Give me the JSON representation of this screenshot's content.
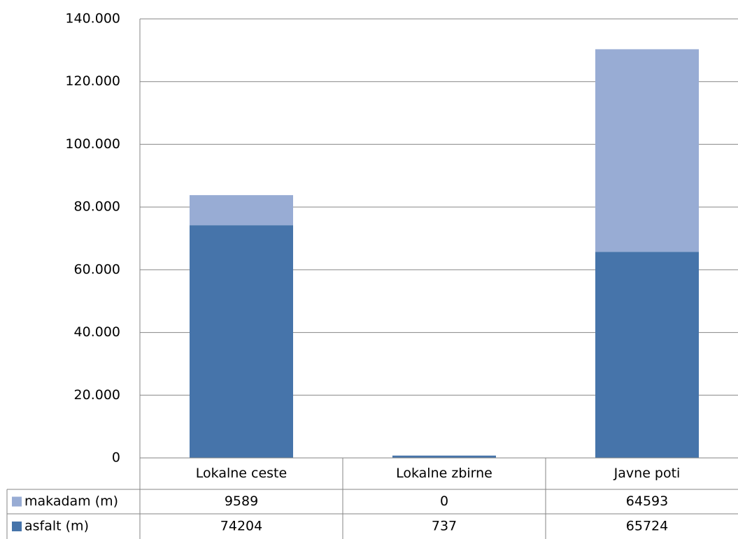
{
  "chart_data": {
    "type": "stacked-bar",
    "categories": [
      "Lokalne ceste",
      "Lokalne zbirne",
      "Javne poti"
    ],
    "series": [
      {
        "name": "makadam (m)",
        "color": "#98acd4",
        "values": [
          9589,
          0,
          64593
        ]
      },
      {
        "name": "asfalt (m)",
        "color": "#4674aa",
        "values": [
          74204,
          737,
          65724
        ]
      }
    ],
    "ylim": [
      0,
      140000
    ],
    "yticks": [
      0,
      {
        "value": 20000,
        "label": "20.000"
      },
      {
        "value": 40000,
        "label": "40.000"
      },
      {
        "value": 60000,
        "label": "60.000"
      },
      {
        "value": 80000,
        "label": "80.000"
      },
      {
        "value": 100000,
        "label": "100.000"
      },
      {
        "value": 120000,
        "label": "120.000"
      },
      {
        "value": 140000,
        "label": "140.000"
      }
    ],
    "grid": true
  }
}
